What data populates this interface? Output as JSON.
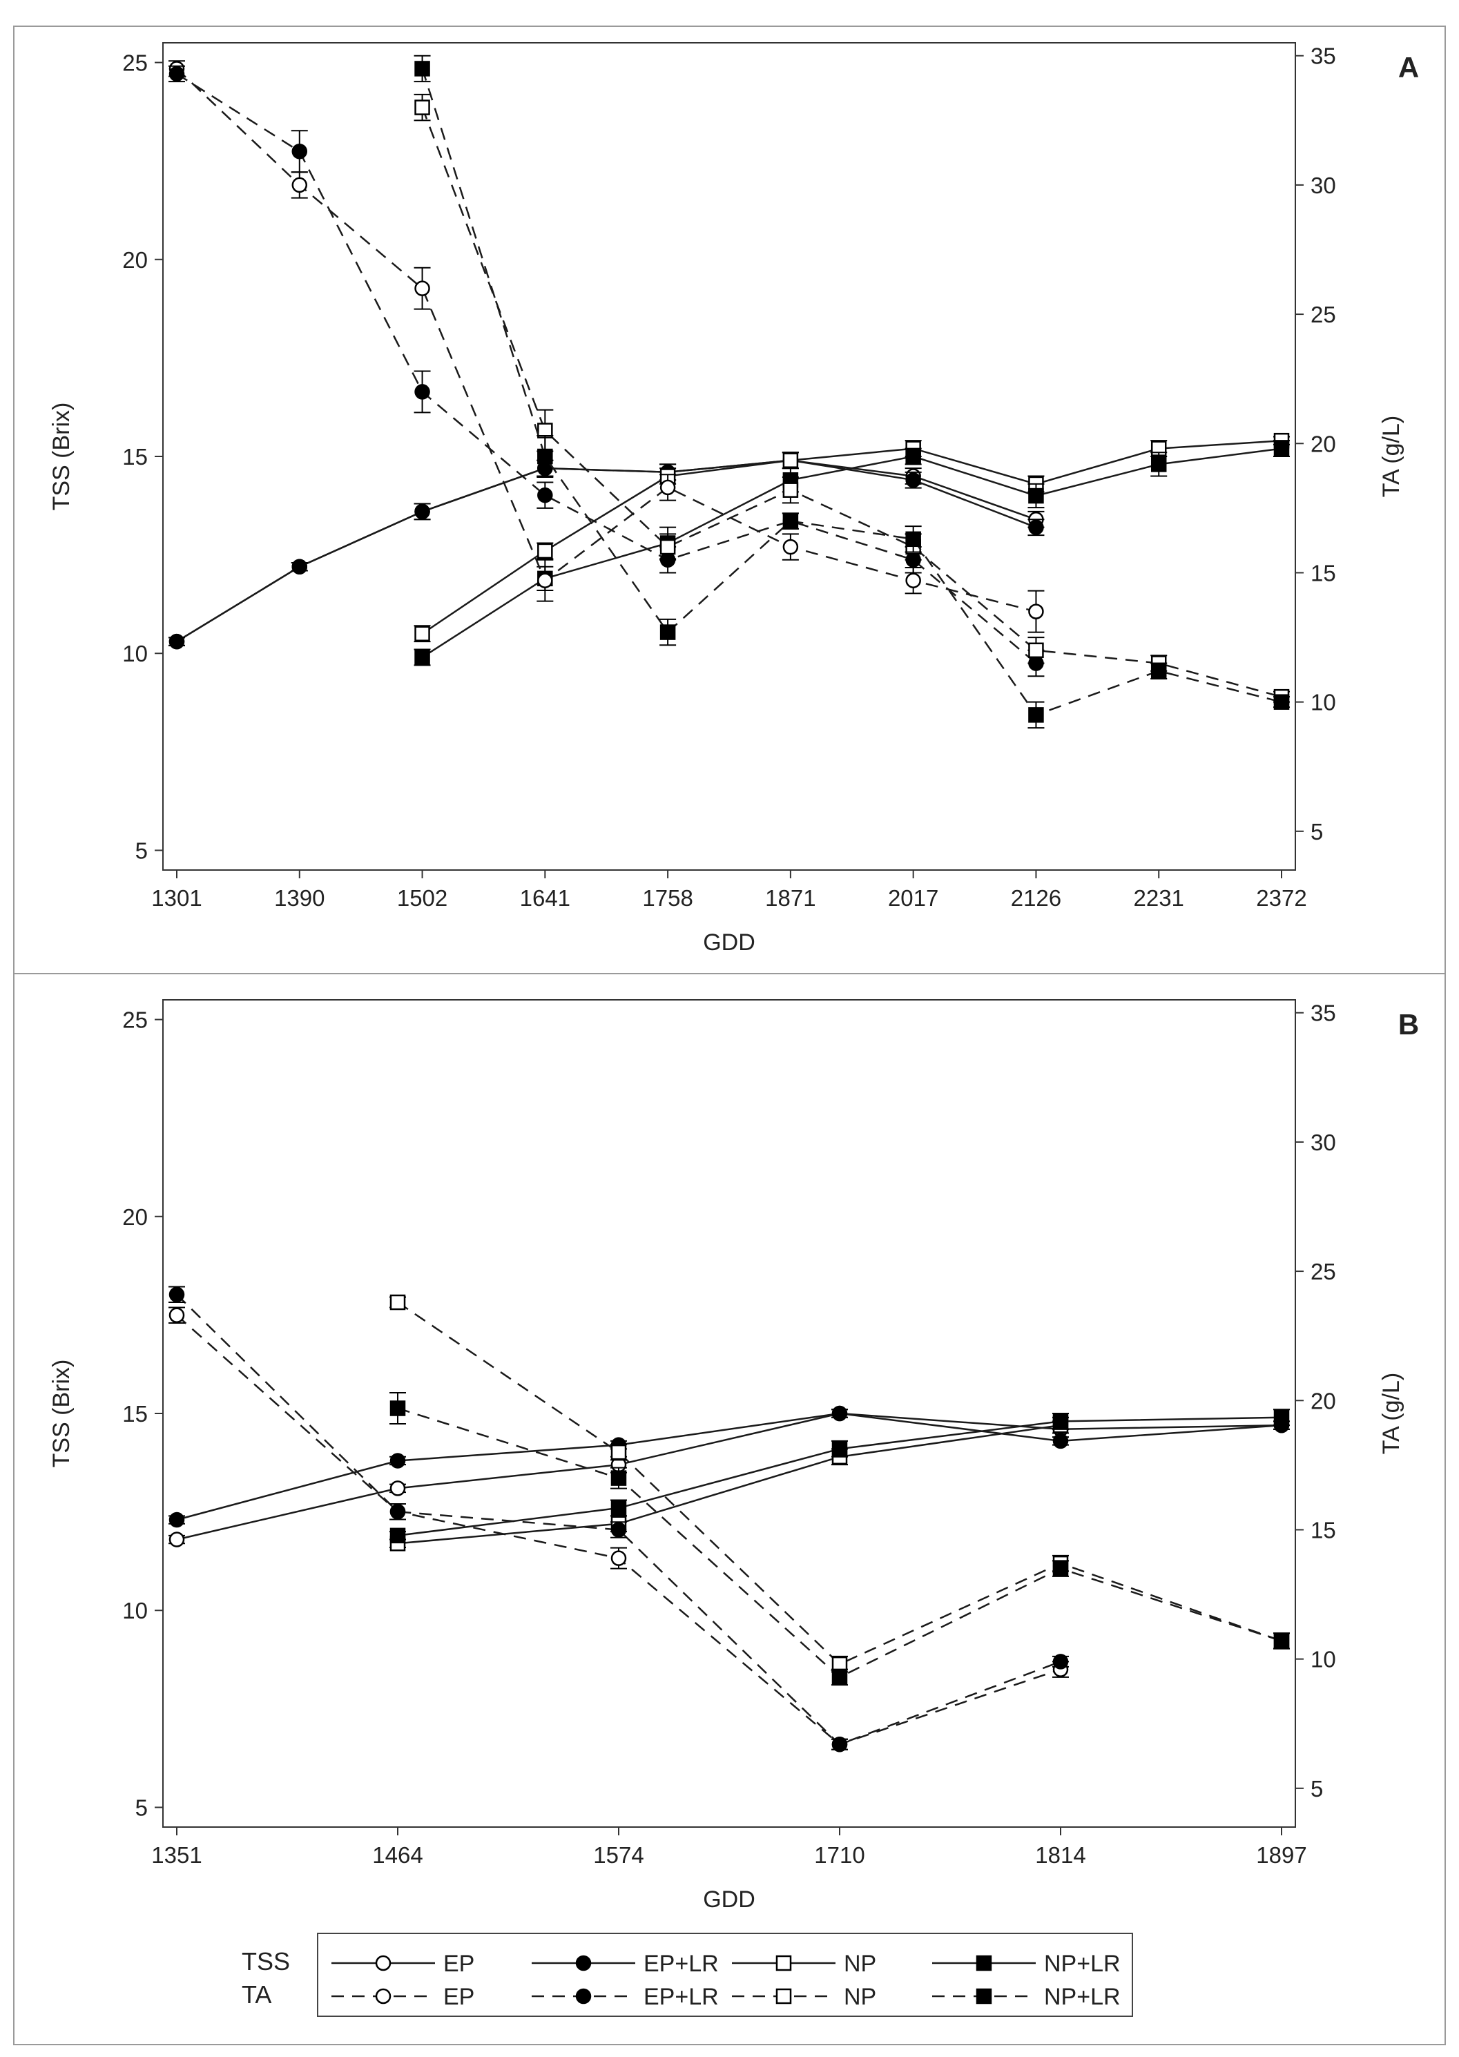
{
  "chart_data": [
    {
      "type": "line",
      "panel_label": "A",
      "xlabel": "GDD",
      "ylabel": "TSS (Brix)",
      "y2label": "TA (g/L)",
      "categories": [
        "1301",
        "1390",
        "1502",
        "1641",
        "1758",
        "1871",
        "2017",
        "2126",
        "2231",
        "2372"
      ],
      "ylim": [
        4.5,
        25.5
      ],
      "y2lim": [
        3.5,
        35.5
      ],
      "yticks": [
        5,
        10,
        15,
        20,
        25
      ],
      "y2ticks": [
        5,
        10,
        15,
        20,
        25,
        30,
        35
      ],
      "grid": false,
      "series": [
        {
          "group": "TSS",
          "name": "EP",
          "axis": "left",
          "marker": "circle-open",
          "values": [
            10.3,
            12.2,
            13.6,
            14.7,
            14.6,
            14.9,
            14.5,
            13.4,
            null,
            null
          ],
          "err": [
            0.1,
            0.1,
            0.2,
            0.2,
            0.2,
            0.2,
            0.2,
            0.2,
            null,
            null
          ]
        },
        {
          "group": "TSS",
          "name": "EP+LR",
          "axis": "left",
          "marker": "circle-filled",
          "values": [
            10.3,
            12.2,
            13.6,
            14.7,
            14.6,
            14.9,
            14.4,
            13.2,
            null,
            null
          ],
          "err": [
            0.1,
            0.1,
            0.2,
            0.2,
            0.2,
            0.2,
            0.2,
            0.2,
            null,
            null
          ]
        },
        {
          "group": "TSS",
          "name": "NP",
          "axis": "left",
          "marker": "square-open",
          "values": [
            null,
            null,
            10.5,
            12.6,
            14.5,
            14.9,
            15.2,
            14.3,
            15.2,
            15.4
          ],
          "err": [
            null,
            null,
            0.2,
            0.2,
            0.2,
            0.2,
            0.2,
            0.2,
            0.2,
            0.1
          ]
        },
        {
          "group": "TSS",
          "name": "NP+LR",
          "axis": "left",
          "marker": "square-filled",
          "values": [
            null,
            null,
            9.9,
            11.9,
            12.8,
            14.4,
            15.0,
            14.0,
            14.8,
            15.2
          ],
          "err": [
            null,
            null,
            0.2,
            0.3,
            0.4,
            0.3,
            0.2,
            0.3,
            0.3,
            0.2
          ]
        },
        {
          "group": "TA",
          "name": "EP",
          "axis": "right",
          "marker": "circle-open",
          "values": [
            34.5,
            30.0,
            26.0,
            14.7,
            18.3,
            16.0,
            14.7,
            13.5,
            null,
            null
          ],
          "err": [
            0.3,
            0.5,
            0.8,
            0.8,
            0.5,
            0.5,
            0.5,
            0.8,
            null,
            null
          ]
        },
        {
          "group": "TA",
          "name": "EP+LR",
          "axis": "right",
          "marker": "circle-filled",
          "values": [
            34.3,
            31.3,
            22.0,
            18.0,
            15.5,
            17.0,
            15.5,
            11.5,
            null,
            null
          ],
          "err": [
            0.3,
            0.8,
            0.8,
            0.5,
            0.5,
            0.3,
            0.5,
            0.5,
            null,
            null
          ]
        },
        {
          "group": "TA",
          "name": "NP",
          "axis": "right",
          "marker": "square-open",
          "values": [
            null,
            null,
            33.0,
            20.5,
            16.0,
            18.2,
            16.0,
            12.0,
            11.5,
            10.2
          ],
          "err": [
            null,
            null,
            0.5,
            0.8,
            0.5,
            0.5,
            0.5,
            0.5,
            0.3,
            0.2
          ]
        },
        {
          "group": "TA",
          "name": "NP+LR",
          "axis": "right",
          "marker": "square-filled",
          "values": [
            null,
            null,
            34.5,
            19.5,
            12.7,
            17.0,
            16.3,
            9.5,
            11.2,
            10.0
          ],
          "err": [
            null,
            null,
            0.5,
            0.8,
            0.5,
            0.3,
            0.5,
            0.5,
            0.3,
            0.2
          ]
        }
      ]
    },
    {
      "type": "line",
      "panel_label": "B",
      "xlabel": "GDD",
      "ylabel": "TSS (Brix)",
      "y2label": "TA (g/L)",
      "categories": [
        "1351",
        "1464",
        "1574",
        "1710",
        "1814",
        "1897"
      ],
      "ylim": [
        4.5,
        25.5
      ],
      "y2lim": [
        3.5,
        35.5
      ],
      "yticks": [
        5,
        10,
        15,
        20,
        25
      ],
      "y2ticks": [
        5,
        10,
        15,
        20,
        25,
        30,
        35
      ],
      "grid": false,
      "series": [
        {
          "group": "TSS",
          "name": "EP",
          "axis": "left",
          "marker": "circle-open",
          "values": [
            11.8,
            13.1,
            13.7,
            15.0,
            14.6,
            14.7
          ],
          "err": [
            0.1,
            0.1,
            0.2,
            0.1,
            0.2,
            0.1
          ]
        },
        {
          "group": "TSS",
          "name": "EP+LR",
          "axis": "left",
          "marker": "circle-filled",
          "values": [
            12.3,
            13.8,
            14.2,
            15.0,
            14.3,
            14.7
          ],
          "err": [
            0.1,
            0.1,
            0.1,
            0.1,
            0.1,
            0.1
          ]
        },
        {
          "group": "TSS",
          "name": "NP",
          "axis": "left",
          "marker": "square-open",
          "values": [
            null,
            11.7,
            12.2,
            13.9,
            14.7,
            null
          ],
          "err": [
            null,
            0.1,
            0.2,
            0.2,
            0.2,
            null
          ]
        },
        {
          "group": "TSS",
          "name": "NP+LR",
          "axis": "left",
          "marker": "square-filled",
          "values": [
            null,
            11.9,
            12.6,
            14.1,
            14.8,
            14.9
          ],
          "err": [
            null,
            0.1,
            0.2,
            0.2,
            0.2,
            0.2
          ]
        },
        {
          "group": "TA",
          "name": "EP",
          "axis": "right",
          "marker": "circle-open",
          "values": [
            23.3,
            15.7,
            13.9,
            6.7,
            9.6,
            null
          ],
          "err": [
            0.3,
            0.3,
            0.4,
            0.2,
            0.3,
            null
          ]
        },
        {
          "group": "TA",
          "name": "EP+LR",
          "axis": "right",
          "marker": "circle-filled",
          "values": [
            24.1,
            15.7,
            15.0,
            6.7,
            9.9,
            null
          ],
          "err": [
            0.3,
            0.3,
            0.3,
            0.2,
            0.2,
            null
          ]
        },
        {
          "group": "TA",
          "name": "NP",
          "axis": "right",
          "marker": "square-open",
          "values": [
            null,
            23.8,
            18.0,
            9.8,
            13.7,
            10.7
          ],
          "err": [
            null,
            0.2,
            0.3,
            0.3,
            0.3,
            0.3
          ]
        },
        {
          "group": "TA",
          "name": "NP+LR",
          "axis": "right",
          "marker": "square-filled",
          "values": [
            null,
            19.7,
            17.0,
            9.3,
            13.5,
            10.7
          ],
          "err": [
            null,
            0.6,
            0.4,
            0.3,
            0.3,
            0.3
          ]
        }
      ]
    }
  ],
  "legend": {
    "rows": [
      {
        "label": "TSS",
        "style": "solid",
        "entries": [
          {
            "name": "EP",
            "marker": "circle-open"
          },
          {
            "name": "EP+LR",
            "marker": "circle-filled"
          },
          {
            "name": "NP",
            "marker": "square-open"
          },
          {
            "name": "NP+LR",
            "marker": "square-filled"
          }
        ]
      },
      {
        "label": "TA",
        "style": "dashed",
        "entries": [
          {
            "name": "EP",
            "marker": "circle-open"
          },
          {
            "name": "EP+LR",
            "marker": "circle-filled"
          },
          {
            "name": "NP",
            "marker": "square-open"
          },
          {
            "name": "NP+LR",
            "marker": "square-filled"
          }
        ]
      }
    ]
  }
}
